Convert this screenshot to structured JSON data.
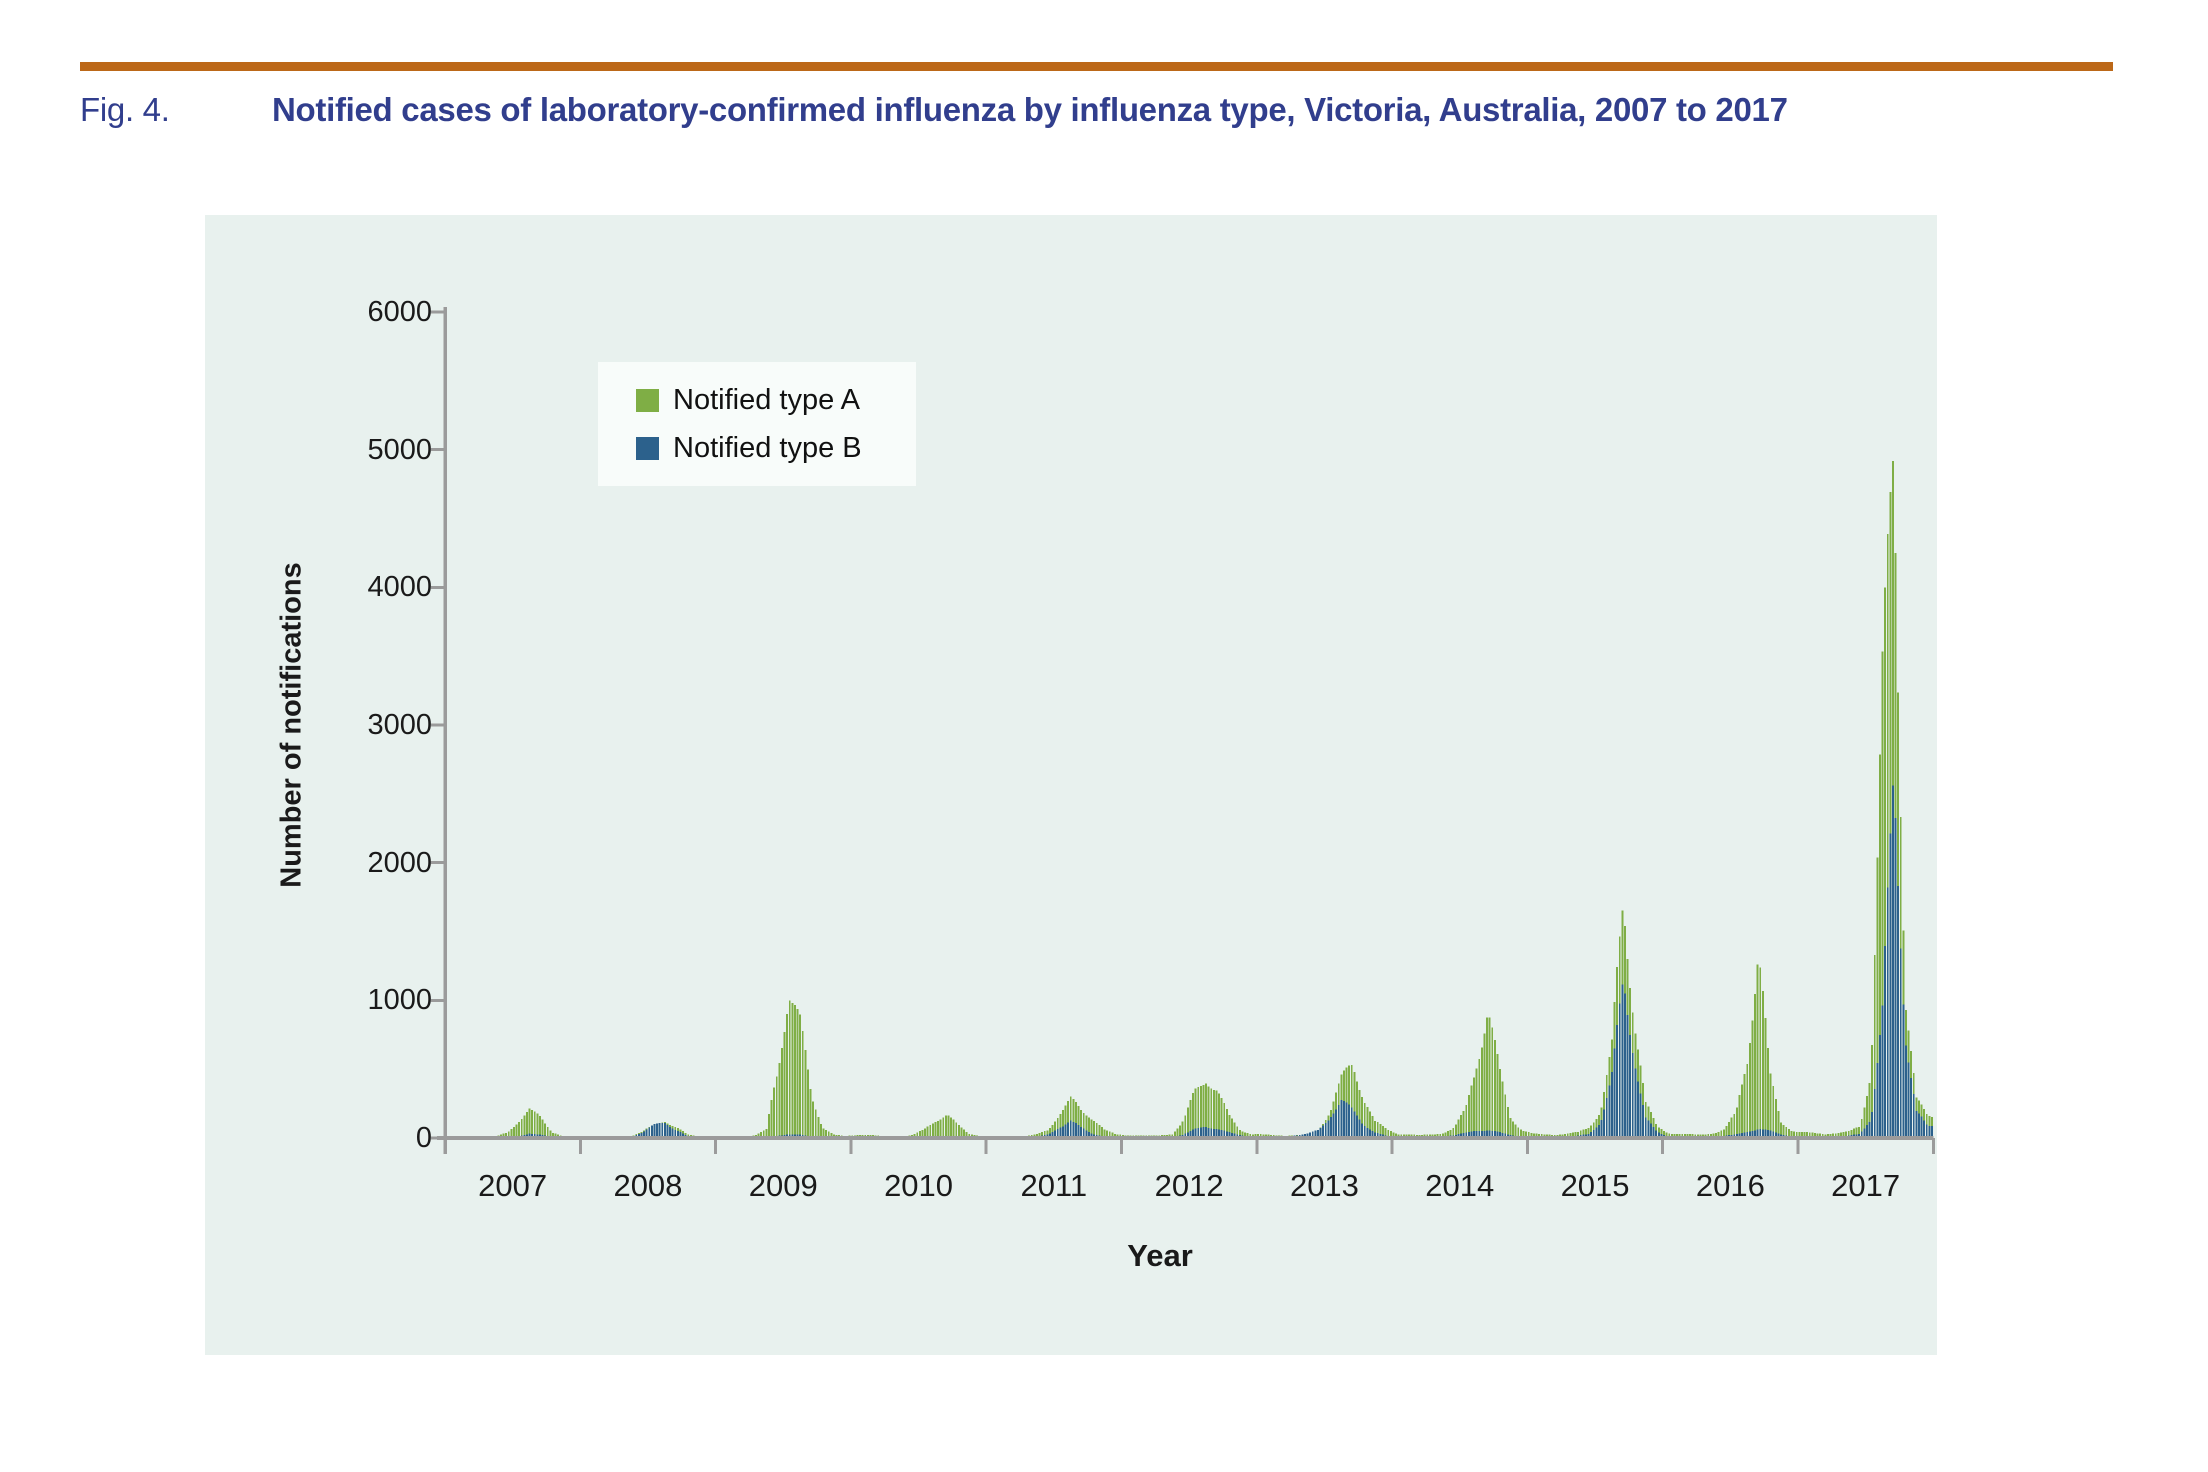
{
  "figure": {
    "label": "Fig. 4.",
    "title": "Notified cases of laboratory-confirmed influenza by influenza type, Victoria, Australia, 2007 to 2017"
  },
  "colors": {
    "accent_rule": "#BC6818",
    "title_text": "#313E8D",
    "plot_bg": "#E8F1EE",
    "axis": "#9B9B9B",
    "tick_text": "#1A1A1A",
    "type_a": "#7FAE45",
    "type_b": "#2C618C",
    "legend_bg": "#F8FCFA"
  },
  "chart_data": {
    "type": "bar",
    "title": "Notified cases of laboratory-confirmed influenza by influenza type, Victoria, Australia, 2007 to 2017",
    "xlabel": "Year",
    "ylabel": "Number of notifications",
    "ylim": [
      0,
      6000
    ],
    "yticks": [
      0,
      1000,
      2000,
      3000,
      4000,
      5000,
      6000
    ],
    "grid": false,
    "legend_position": "upper left",
    "x_categories": [
      "2007",
      "2008",
      "2009",
      "2010",
      "2011",
      "2012",
      "2013",
      "2014",
      "2015",
      "2016",
      "2017"
    ],
    "bar_resolution": "weekly (52 thin bars per year, two overlaid series); values below are estimated weekly counts at monthly midpoints read from the plot",
    "series": [
      {
        "name": "Notified type A",
        "color": "#7FAE45",
        "monthly_values": [
          3,
          3,
          4,
          6,
          10,
          40,
          120,
          195,
          150,
          45,
          12,
          6,
          4,
          4,
          5,
          8,
          15,
          45,
          90,
          130,
          80,
          25,
          10,
          5,
          8,
          10,
          12,
          18,
          60,
          500,
          1090,
          820,
          300,
          80,
          25,
          12,
          22,
          25,
          15,
          10,
          12,
          20,
          60,
          130,
          175,
          90,
          30,
          15,
          15,
          12,
          10,
          15,
          25,
          60,
          180,
          275,
          190,
          145,
          60,
          25,
          20,
          18,
          15,
          20,
          30,
          120,
          330,
          440,
          350,
          160,
          60,
          30,
          25,
          20,
          18,
          20,
          25,
          60,
          200,
          420,
          520,
          300,
          120,
          60,
          30,
          25,
          20,
          25,
          35,
          70,
          200,
          560,
          930,
          480,
          150,
          60,
          30,
          25,
          25,
          30,
          40,
          80,
          200,
          650,
          1690,
          900,
          250,
          80,
          35,
          30,
          25,
          25,
          35,
          60,
          180,
          600,
          1350,
          450,
          120,
          50,
          40,
          35,
          30,
          35,
          45,
          90,
          500,
          3200,
          4950,
          1100,
          280,
          150
        ]
      },
      {
        "name": "Notified type B",
        "color": "#2C618C",
        "monthly_values": [
          1,
          1,
          1,
          2,
          3,
          6,
          15,
          30,
          22,
          8,
          3,
          2,
          1,
          2,
          3,
          5,
          10,
          40,
          90,
          115,
          60,
          15,
          5,
          2,
          2,
          2,
          3,
          3,
          5,
          15,
          30,
          25,
          10,
          5,
          3,
          2,
          3,
          3,
          2,
          2,
          3,
          5,
          10,
          15,
          18,
          10,
          5,
          3,
          3,
          3,
          4,
          6,
          10,
          25,
          80,
          120,
          70,
          30,
          12,
          5,
          5,
          5,
          5,
          6,
          10,
          25,
          60,
          85,
          70,
          40,
          20,
          10,
          8,
          10,
          15,
          20,
          30,
          60,
          160,
          260,
          200,
          100,
          40,
          15,
          8,
          8,
          8,
          10,
          12,
          20,
          35,
          55,
          60,
          40,
          20,
          10,
          10,
          10,
          10,
          12,
          15,
          30,
          120,
          450,
          1080,
          600,
          150,
          40,
          10,
          8,
          8,
          8,
          10,
          15,
          25,
          45,
          70,
          50,
          25,
          12,
          15,
          12,
          10,
          12,
          15,
          30,
          150,
          900,
          2500,
          800,
          200,
          80
        ]
      }
    ]
  }
}
